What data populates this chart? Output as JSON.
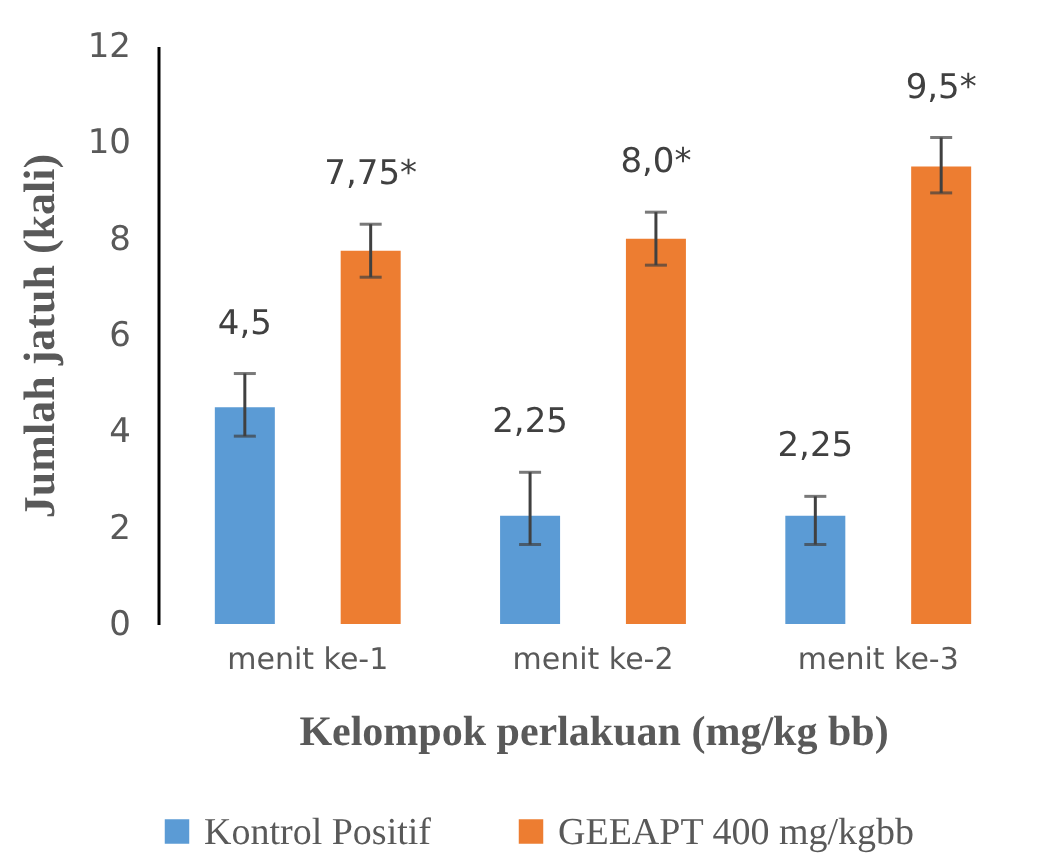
{
  "chart_data": {
    "type": "bar",
    "xlabel": "Kelompok  perlakuan (mg/kg bb)",
    "ylabel": "Jumlah jatuh (kali)",
    "categories": [
      "menit ke-1",
      "menit ke-2",
      "menit ke-3"
    ],
    "series": [
      {
        "name": "Kontrol Positif",
        "color": "#5b9bd5",
        "values": [
          4.5,
          2.25,
          2.25
        ],
        "errors": [
          [
            3.9,
            5.2
          ],
          [
            1.65,
            3.15
          ],
          [
            1.65,
            2.65
          ]
        ],
        "value_labels": [
          "4,5",
          "2,25",
          "2,25"
        ]
      },
      {
        "name": "GEEAPT 400 mg/kgbb",
        "color": "#ed7d31",
        "values": [
          7.75,
          8.0,
          9.5
        ],
        "errors": [
          [
            7.2,
            8.3
          ],
          [
            7.45,
            8.55
          ],
          [
            8.95,
            10.1
          ]
        ],
        "value_labels": [
          "7,75*",
          "8,0*",
          "9,5*"
        ]
      }
    ],
    "ylim": [
      0,
      12
    ],
    "yticks": [
      0,
      2,
      4,
      6,
      8,
      10,
      12
    ],
    "grid": false,
    "legend": "bottom"
  }
}
